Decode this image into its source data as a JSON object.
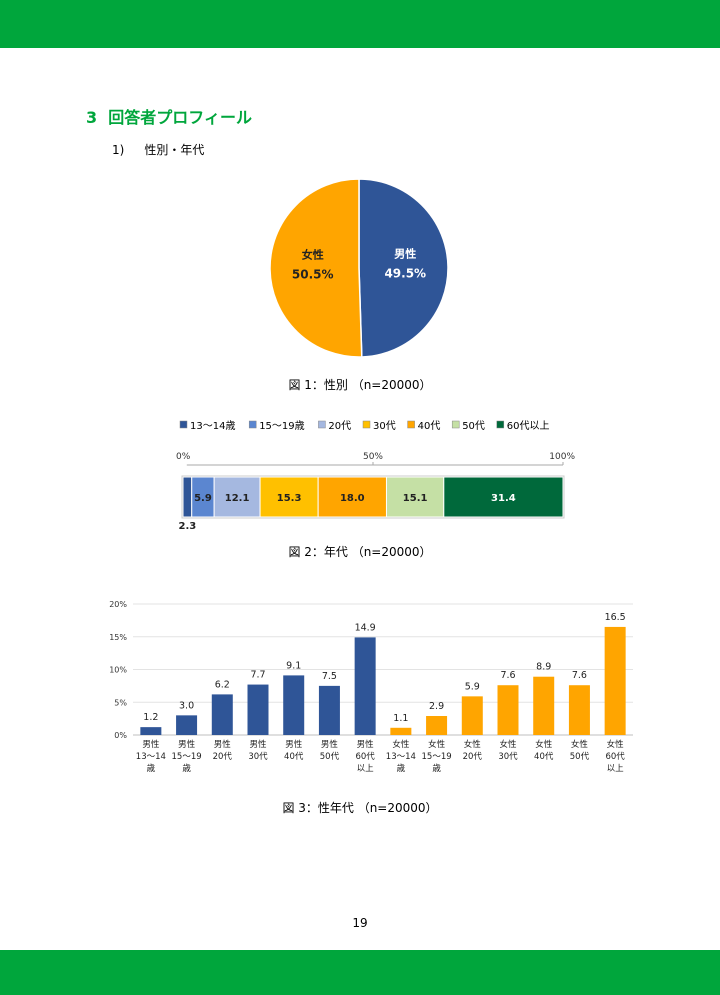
{
  "section": {
    "number": "3",
    "title": "回答者プロフィール"
  },
  "subsection": {
    "number": "1)",
    "title": "性別・年代"
  },
  "page_number": "19",
  "colors": {
    "band": "#00a63c",
    "male": "#2f5597",
    "female": "#ffa500"
  },
  "chart_data": [
    {
      "type": "pie",
      "caption": "図 1：性別 （n=20000）",
      "categories": [
        "男性",
        "女性"
      ],
      "values": [
        49.5,
        50.5
      ],
      "value_labels": [
        "49.5%",
        "50.5%"
      ],
      "colors": [
        "#2f5597",
        "#ffa500"
      ]
    },
    {
      "type": "bar",
      "orientation": "horizontal-stacked-100",
      "caption": "図 2：年代 （n=20000）",
      "legend_position": "top",
      "ticks": [
        "0%",
        "50%",
        "100%"
      ],
      "series": [
        {
          "name": "13～14歳",
          "value": 2.3,
          "label": "2.3",
          "color": "#2f5597"
        },
        {
          "name": "15～19歳",
          "value": 5.9,
          "label": "5.9",
          "color": "#5b86d0"
        },
        {
          "name": "20代",
          "value": 12.1,
          "label": "12.1",
          "color": "#a5b8e0"
        },
        {
          "name": "30代",
          "value": 15.3,
          "label": "15.3",
          "color": "#ffc000"
        },
        {
          "name": "40代",
          "value": 18.0,
          "label": "18.0",
          "color": "#ffa500"
        },
        {
          "name": "50代",
          "value": 15.1,
          "label": "15.1",
          "color": "#c5e0a5"
        },
        {
          "name": "60代以上",
          "value": 31.4,
          "label": "31.4",
          "color": "#00693b"
        }
      ]
    },
    {
      "type": "bar",
      "caption": "図 3：性年代 （n=20000）",
      "ylim": [
        0,
        20
      ],
      "yticks": [
        "0%",
        "5%",
        "10%",
        "15%",
        "20%"
      ],
      "grid": true,
      "categories": [
        [
          "男性",
          "13～14",
          "歳"
        ],
        [
          "男性",
          "15～19",
          "歳"
        ],
        [
          "男性",
          "20代"
        ],
        [
          "男性",
          "30代"
        ],
        [
          "男性",
          "40代"
        ],
        [
          "男性",
          "50代"
        ],
        [
          "男性",
          "60代",
          "以上"
        ],
        [
          "女性",
          "13～14",
          "歳"
        ],
        [
          "女性",
          "15～19",
          "歳"
        ],
        [
          "女性",
          "20代"
        ],
        [
          "女性",
          "30代"
        ],
        [
          "女性",
          "40代"
        ],
        [
          "女性",
          "50代"
        ],
        [
          "女性",
          "60代",
          "以上"
        ]
      ],
      "values": [
        1.2,
        3.0,
        6.2,
        7.7,
        9.1,
        7.5,
        14.9,
        1.1,
        2.9,
        5.9,
        7.6,
        8.9,
        7.6,
        16.5
      ],
      "value_labels": [
        "1.2",
        "3.0",
        "6.2",
        "7.7",
        "9.1",
        "7.5",
        "14.9",
        "1.1",
        "2.9",
        "5.9",
        "7.6",
        "8.9",
        "7.6",
        "16.5"
      ],
      "colors": [
        "#2f5597",
        "#2f5597",
        "#2f5597",
        "#2f5597",
        "#2f5597",
        "#2f5597",
        "#2f5597",
        "#ffa500",
        "#ffa500",
        "#ffa500",
        "#ffa500",
        "#ffa500",
        "#ffa500",
        "#ffa500"
      ]
    }
  ]
}
